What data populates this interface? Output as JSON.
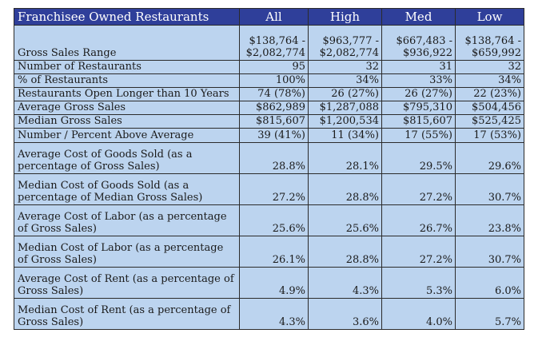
{
  "table": {
    "header": {
      "title": "Franchisee Owned Restaurants",
      "columns": [
        "All",
        "High",
        "Med",
        "Low"
      ]
    },
    "gross_sales_range": {
      "label": "Gross Sales Range",
      "values": [
        [
          "$138,764 -",
          "$2,082,774"
        ],
        [
          "$963,777 -",
          "$2,082,774"
        ],
        [
          "$667,483 -",
          "$936,922"
        ],
        [
          "$138,764 -",
          "$659,992"
        ]
      ]
    },
    "rows": [
      {
        "label": "Number of Restaurants",
        "values": [
          "95",
          "32",
          "31",
          "32"
        ]
      },
      {
        "label": "% of Restaurants",
        "values": [
          "100%",
          "34%",
          "33%",
          "34%"
        ]
      },
      {
        "label": "Restaurants Open Longer than 10 Years",
        "values": [
          "74 (78%)",
          "26 (27%)",
          "26 (27%)",
          "22 (23%)"
        ]
      },
      {
        "label": "Average Gross Sales",
        "values": [
          "$862,989",
          "$1,287,088",
          "$795,310",
          "$504,456"
        ]
      },
      {
        "label": "Median Gross Sales",
        "values": [
          "$815,607",
          "$1,200,534",
          "$815,607",
          "$525,425"
        ]
      },
      {
        "label": "Number / Percent Above Average",
        "values": [
          "39 (41%)",
          "11 (34%)",
          "17 (55%)",
          "17 (53%)"
        ]
      },
      {
        "label": "Average Cost of Goods Sold (as a percentage of Gross Sales)",
        "values": [
          "28.8%",
          "28.1%",
          "29.5%",
          "29.6%"
        ]
      },
      {
        "label": "Median Cost of Goods Sold (as a percentage of Median Gross Sales)",
        "values": [
          "27.2%",
          "28.8%",
          "27.2%",
          "30.7%"
        ]
      },
      {
        "label": "Average Cost of Labor (as a percentage of Gross Sales)",
        "values": [
          "25.6%",
          "25.6%",
          "26.7%",
          "23.8%"
        ]
      },
      {
        "label": "Median Cost of Labor (as a percentage of Gross Sales)",
        "values": [
          "26.1%",
          "28.8%",
          "27.2%",
          "30.7%"
        ]
      },
      {
        "label": "Average Cost of Rent (as a percentage of Gross Sales)",
        "values": [
          "4.9%",
          "4.3%",
          "5.3%",
          "6.0%"
        ]
      },
      {
        "label": "Median Cost of Rent (as a percentage of Gross Sales)",
        "values": [
          "4.3%",
          "3.6%",
          "4.0%",
          "5.7%"
        ]
      }
    ]
  },
  "colors": {
    "header_background": "#2f3f9a",
    "header_text": "#ffffff",
    "cell_background": "#bcd4ef",
    "border": "#2b2b2b"
  }
}
